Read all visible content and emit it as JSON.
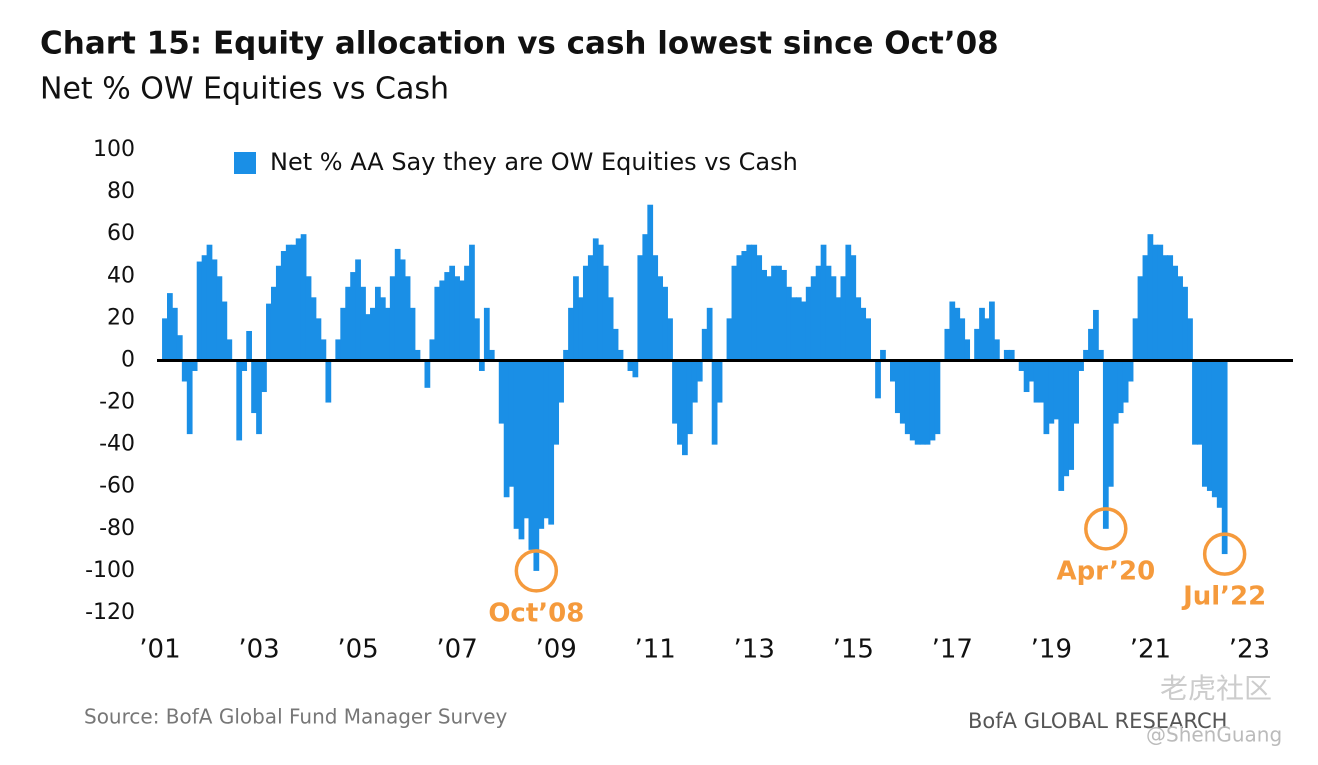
{
  "chart_data": {
    "type": "bar",
    "title": "Chart 15: Equity allocation vs cash lowest since Oct’08",
    "subtitle": "Net % OW Equities vs Cash",
    "source": "Source: BofA Global Fund Manager Survey",
    "brand": "BofA GLOBAL RESEARCH",
    "watermark": [
      "老虎社区",
      "@ShenGuang"
    ],
    "xlim": [
      2000.94,
      2023.88
    ],
    "xticks": [
      {
        "value": 2001,
        "label": "’01"
      },
      {
        "value": 2003,
        "label": "’03"
      },
      {
        "value": 2005,
        "label": "’05"
      },
      {
        "value": 2007,
        "label": "’07"
      },
      {
        "value": 2009,
        "label": "’09"
      },
      {
        "value": 2011,
        "label": "’11"
      },
      {
        "value": 2013,
        "label": "’13"
      },
      {
        "value": 2015,
        "label": "’15"
      },
      {
        "value": 2017,
        "label": "’17"
      },
      {
        "value": 2019,
        "label": "’19"
      },
      {
        "value": 2021,
        "label": "’21"
      },
      {
        "value": 2023,
        "label": "’23"
      }
    ],
    "ylim": [
      -120,
      100
    ],
    "yticks": [
      100,
      80,
      60,
      40,
      20,
      0,
      -20,
      -40,
      -60,
      -80,
      -100,
      -120
    ],
    "annotations": [
      {
        "text": "Oct’08",
        "x": 2008.6,
        "y": -100
      },
      {
        "text": "Apr’20",
        "x": 2020.1,
        "y": -80
      },
      {
        "text": "Jul’22",
        "x": 2022.5,
        "y": -92
      }
    ],
    "x": [
      2001,
      2001.1,
      2001.2,
      2001.3,
      2001.4,
      2001.5,
      2001.6,
      2001.7,
      2001.8,
      2001.9,
      2002,
      2002.1,
      2002.2,
      2002.3,
      2002.4,
      2002.5,
      2002.6,
      2002.7,
      2002.8,
      2002.9,
      2003,
      2003.1,
      2003.2,
      2003.3,
      2003.4,
      2003.5,
      2003.6,
      2003.7,
      2003.8,
      2003.9,
      2004,
      2004.1,
      2004.2,
      2004.3,
      2004.4,
      2004.5,
      2004.6,
      2004.7,
      2004.8,
      2004.9,
      2005,
      2005.1,
      2005.2,
      2005.3,
      2005.4,
      2005.5,
      2005.6,
      2005.7,
      2005.8,
      2005.9,
      2006,
      2006.1,
      2006.2,
      2006.3,
      2006.4,
      2006.5,
      2006.6,
      2006.7,
      2006.8,
      2006.9,
      2007,
      2007.1,
      2007.2,
      2007.3,
      2007.4,
      2007.5,
      2007.6,
      2007.7,
      2007.8,
      2007.9,
      2008,
      2008.1,
      2008.2,
      2008.3,
      2008.4,
      2008.5,
      2008.6,
      2008.7,
      2008.8,
      2008.9,
      2009,
      2009.1,
      2009.2,
      2009.3,
      2009.4,
      2009.5,
      2009.6,
      2009.7,
      2009.8,
      2009.9,
      2010,
      2010.1,
      2010.2,
      2010.3,
      2010.4,
      2010.5,
      2010.6,
      2010.7,
      2010.8,
      2010.9,
      2011,
      2011.1,
      2011.2,
      2011.3,
      2011.4,
      2011.5,
      2011.6,
      2011.7,
      2011.8,
      2011.9,
      2012,
      2012.1,
      2012.2,
      2012.3,
      2012.4,
      2012.5,
      2012.6,
      2012.7,
      2012.8,
      2012.9,
      2013,
      2013.1,
      2013.2,
      2013.3,
      2013.4,
      2013.5,
      2013.6,
      2013.7,
      2013.8,
      2013.9,
      2014,
      2014.1,
      2014.2,
      2014.3,
      2014.4,
      2014.5,
      2014.6,
      2014.7,
      2014.8,
      2014.9,
      2015,
      2015.1,
      2015.2,
      2015.3,
      2015.4,
      2015.5,
      2015.6,
      2015.7,
      2015.8,
      2015.9,
      2016,
      2016.1,
      2016.2,
      2016.3,
      2016.4,
      2016.5,
      2016.6,
      2016.7,
      2016.8,
      2016.9,
      2017,
      2017.1,
      2017.2,
      2017.3,
      2017.4,
      2017.5,
      2017.6,
      2017.7,
      2017.8,
      2017.9,
      2018,
      2018.1,
      2018.2,
      2018.3,
      2018.4,
      2018.5,
      2018.6,
      2018.7,
      2018.8,
      2018.9,
      2019,
      2019.1,
      2019.2,
      2019.3,
      2019.4,
      2019.5,
      2019.6,
      2019.7,
      2019.8,
      2019.9,
      2020,
      2020.1,
      2020.2,
      2020.3,
      2020.4,
      2020.5,
      2020.6,
      2020.7,
      2020.8,
      2020.9,
      2021,
      2021.1,
      2021.2,
      2021.3,
      2021.4,
      2021.5,
      2021.6,
      2021.7,
      2021.8,
      2021.9,
      2022,
      2022.1,
      2022.2,
      2022.3,
      2022.4,
      2022.5
    ],
    "series": [
      {
        "name": "Net % AA Say they are OW Equities vs Cash",
        "color": "#1a8fe6",
        "values": [
          0,
          20,
          32,
          25,
          12,
          -10,
          -35,
          -5,
          47,
          50,
          55,
          48,
          40,
          28,
          10,
          0,
          -38,
          -5,
          14,
          -25,
          -35,
          -15,
          27,
          35,
          45,
          52,
          55,
          55,
          58,
          60,
          40,
          30,
          20,
          10,
          -20,
          0,
          10,
          25,
          35,
          42,
          48,
          35,
          22,
          25,
          35,
          30,
          25,
          40,
          53,
          48,
          40,
          25,
          5,
          0,
          -13,
          10,
          35,
          38,
          42,
          45,
          40,
          38,
          45,
          55,
          20,
          -5,
          25,
          5,
          0,
          -30,
          -65,
          -60,
          -80,
          -85,
          -75,
          -90,
          -100,
          -80,
          -75,
          -78,
          -40,
          -20,
          5,
          25,
          40,
          30,
          45,
          50,
          58,
          55,
          45,
          30,
          15,
          5,
          0,
          -5,
          -8,
          50,
          60,
          74,
          50,
          40,
          35,
          20,
          -30,
          -40,
          -45,
          -35,
          -20,
          -10,
          15,
          25,
          -40,
          -20,
          0,
          20,
          45,
          50,
          52,
          55,
          55,
          50,
          43,
          40,
          45,
          45,
          43,
          35,
          30,
          30,
          28,
          35,
          40,
          45,
          55,
          45,
          40,
          30,
          40,
          55,
          50,
          30,
          25,
          20,
          0,
          -18,
          5,
          0,
          -10,
          -25,
          -30,
          -35,
          -38,
          -40,
          -40,
          -40,
          -38,
          -35,
          0,
          15,
          28,
          25,
          20,
          10,
          0,
          15,
          25,
          20,
          28,
          10,
          0,
          5,
          5,
          0,
          -5,
          -15,
          -10,
          -20,
          -20,
          -35,
          -30,
          -28,
          -62,
          -55,
          -52,
          -30,
          -5,
          5,
          15,
          24,
          5,
          -80,
          -60,
          -30,
          -25,
          -20,
          -10,
          20,
          40,
          50,
          60,
          55,
          55,
          50,
          50,
          45,
          40,
          35,
          20,
          -40,
          -40,
          -60,
          -62,
          -65,
          -70,
          -92
        ]
      }
    ]
  }
}
